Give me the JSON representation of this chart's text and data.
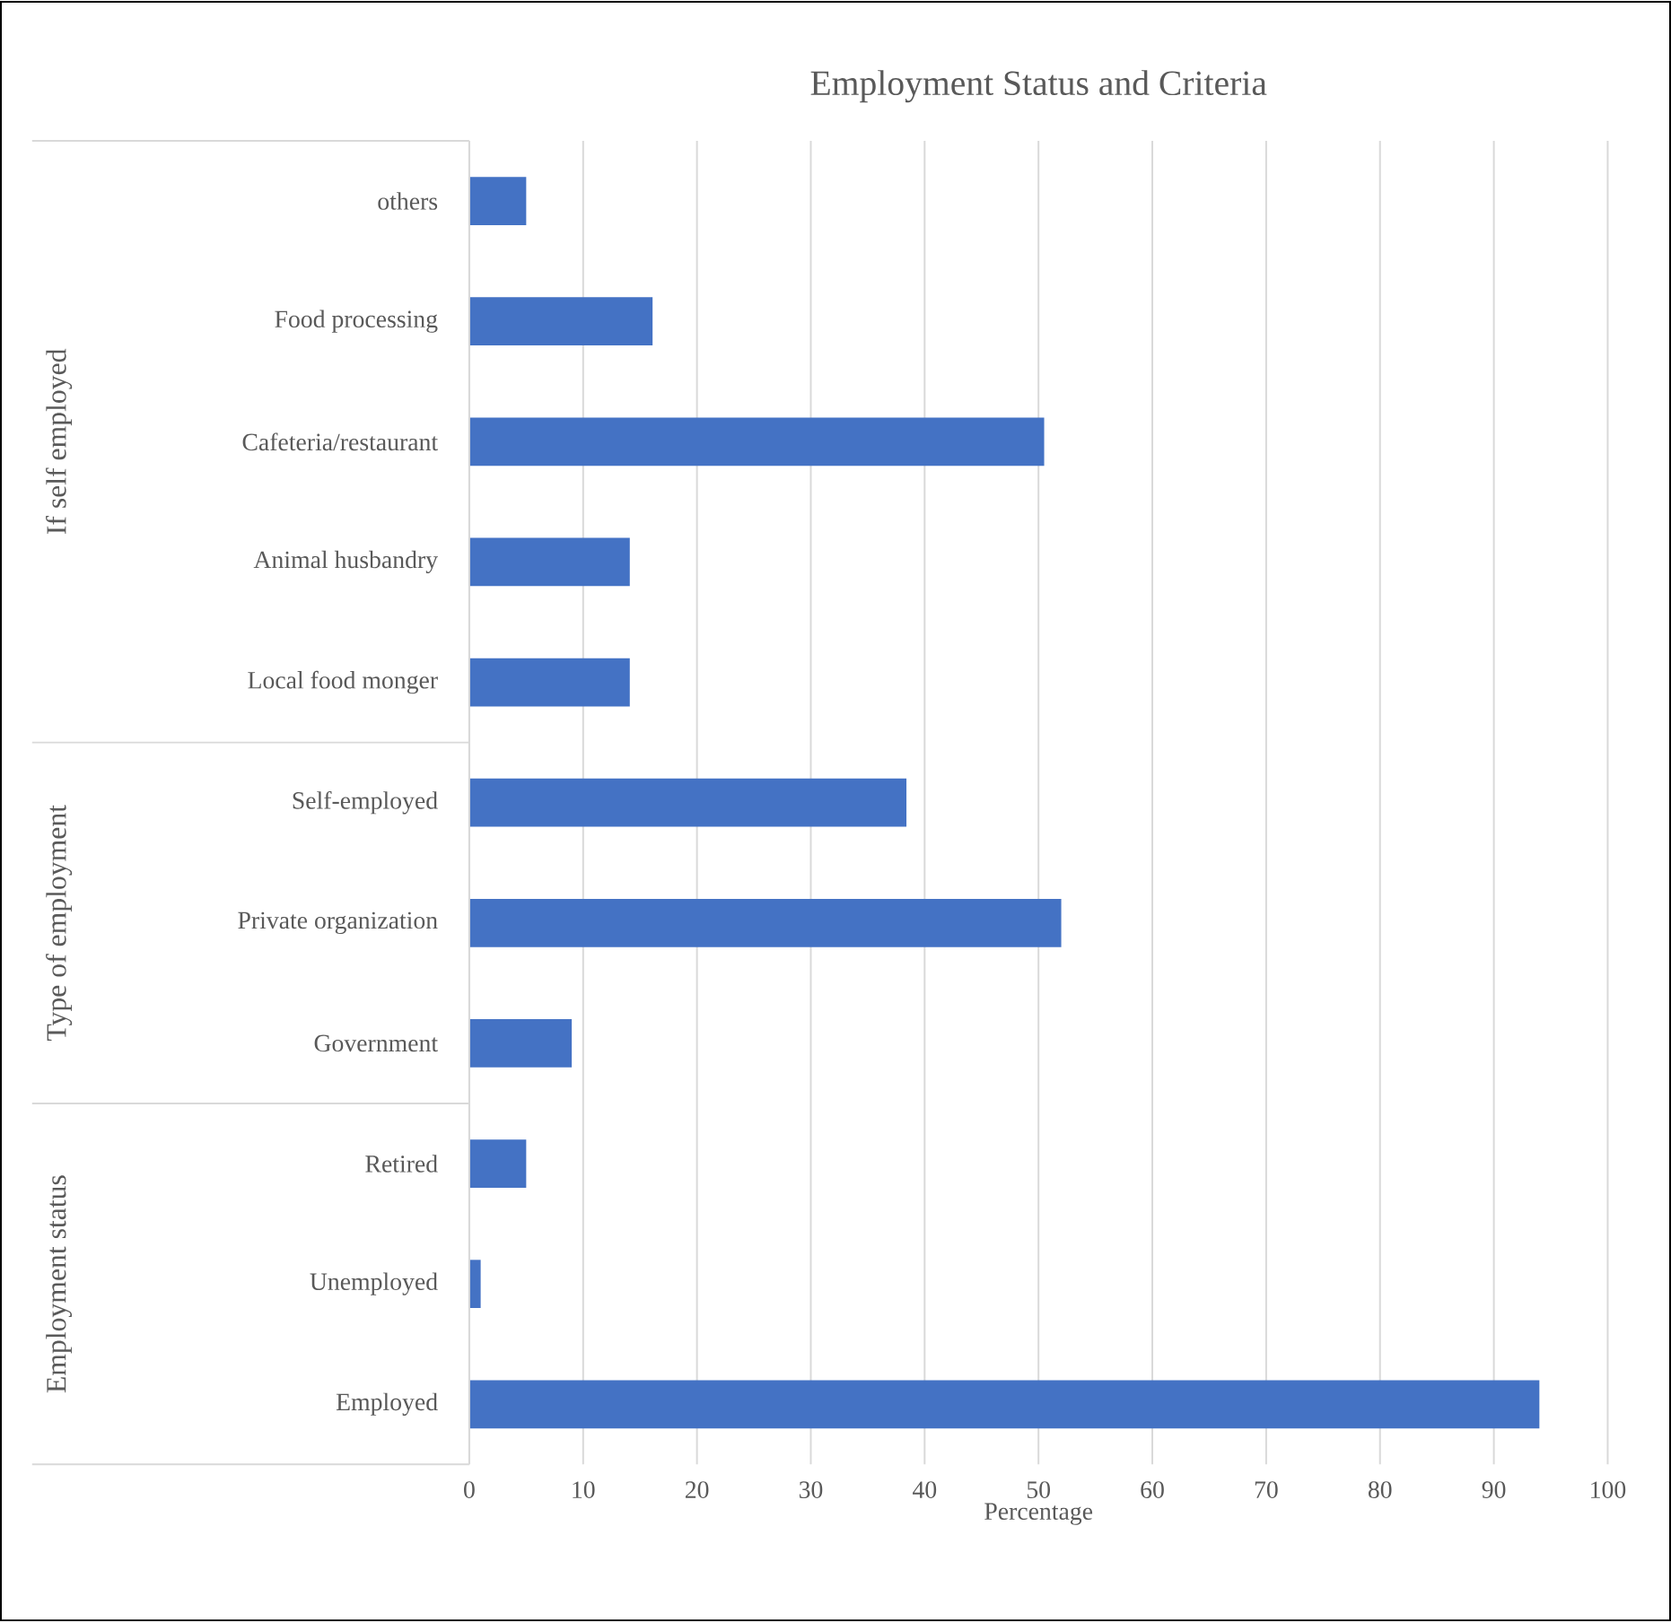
{
  "chart_data": {
    "type": "bar",
    "orientation": "horizontal",
    "title": "Employment Status and Criteria",
    "xlabel": "Percentage",
    "categories": [
      "others",
      "Food processing",
      "Cafeteria/restaurant",
      "Animal husbandry",
      "Local food monger",
      "Self-employed",
      "Private organization",
      "Government",
      "Retired",
      "Unemployed",
      "Employed"
    ],
    "values": [
      5.0,
      16.1,
      50.5,
      14.1,
      14.1,
      38.4,
      52.0,
      9.0,
      5.0,
      1.0,
      94.0
    ],
    "color": "#4472c4",
    "xlim": [
      0,
      100
    ],
    "xticks": [
      0,
      10,
      20,
      30,
      40,
      50,
      60,
      70,
      80,
      90,
      100
    ],
    "grid": "x",
    "annotations": [
      "If self employed",
      "Type of employment",
      "Employment status"
    ]
  }
}
